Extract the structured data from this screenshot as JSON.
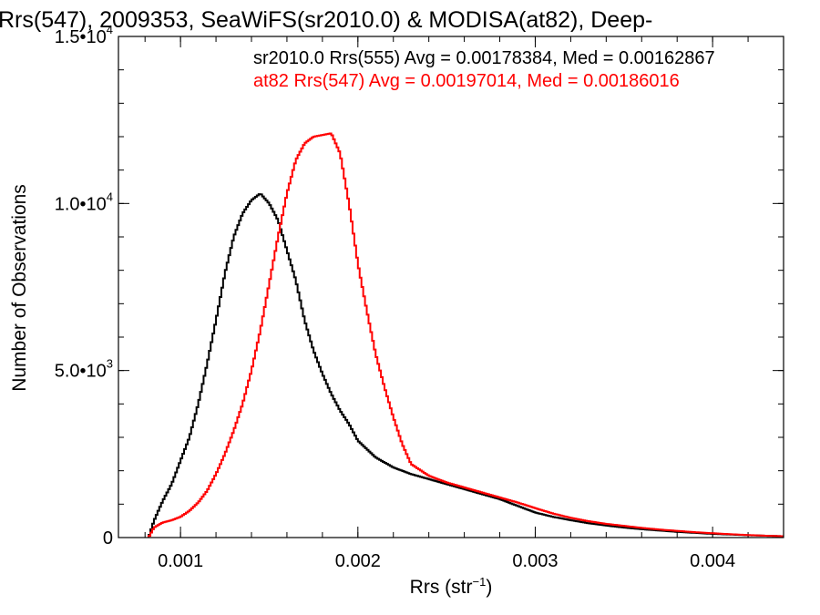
{
  "chart_data": {
    "type": "line",
    "title": "Rrs(547), 2009353, SeaWiFS(sr2010.0) & MODISA(at82), Deep-",
    "xlabel": {
      "base": "Rrs (str",
      "sup": "−1",
      "close": ")"
    },
    "ylabel": "Number of Observations",
    "xlim": [
      0.00065,
      0.0044
    ],
    "ylim": [
      0,
      15000
    ],
    "grid": false,
    "x_ticks": [
      {
        "value": 0.001,
        "label": "0.001"
      },
      {
        "value": 0.002,
        "label": "0.002"
      },
      {
        "value": 0.003,
        "label": "0.003"
      },
      {
        "value": 0.004,
        "label": "0.004"
      }
    ],
    "x_minor_step": 0.0002,
    "y_ticks": [
      {
        "value": 0,
        "mant": "0",
        "exp": ""
      },
      {
        "value": 5000,
        "mant": "5.0•10",
        "exp": "3"
      },
      {
        "value": 10000,
        "mant": "1.0•10",
        "exp": "4"
      },
      {
        "value": 15000,
        "mant": "1.5•10",
        "exp": "4"
      }
    ],
    "y_minor_step": 1000,
    "annotations": [
      {
        "text": "sr2010.0 Rrs(555) Avg = 0.00178384, Med = 0.00162867",
        "color": "#000000"
      },
      {
        "text": "at82 Rrs(547) Avg = 0.00197014, Med = 0.00186016",
        "color": "#ff0000"
      }
    ],
    "series": [
      {
        "color": "#000000",
        "x": [
          0.00082,
          0.00085,
          0.0009,
          0.00095,
          0.001,
          0.00105,
          0.0011,
          0.00115,
          0.0012,
          0.00125,
          0.0013,
          0.00135,
          0.0014,
          0.00145,
          0.0015,
          0.00155,
          0.0016,
          0.00165,
          0.0017,
          0.00175,
          0.0018,
          0.00185,
          0.0019,
          0.00195,
          0.002,
          0.0021,
          0.0022,
          0.0023,
          0.0024,
          0.0025,
          0.0026,
          0.0027,
          0.0028,
          0.0029,
          0.003,
          0.0031,
          0.0032,
          0.0033,
          0.0034,
          0.0035,
          0.0036,
          0.0037,
          0.0038,
          0.0039,
          0.004,
          0.0041,
          0.0042,
          0.0043,
          0.0044
        ],
        "y": [
          0,
          500,
          1100,
          1600,
          2300,
          3000,
          4000,
          5200,
          6500,
          7900,
          9000,
          9700,
          10100,
          10300,
          10000,
          9500,
          8600,
          7700,
          6500,
          5600,
          4900,
          4300,
          3800,
          3400,
          2900,
          2400,
          2100,
          1900,
          1750,
          1600,
          1450,
          1300,
          1150,
          950,
          750,
          620,
          520,
          430,
          360,
          300,
          250,
          210,
          170,
          140,
          110,
          90,
          70,
          55,
          40
        ]
      },
      {
        "color": "#ff0000",
        "x": [
          0.00082,
          0.00085,
          0.0009,
          0.00095,
          0.001,
          0.00105,
          0.0011,
          0.00115,
          0.0012,
          0.00125,
          0.0013,
          0.00135,
          0.0014,
          0.00145,
          0.0015,
          0.00155,
          0.0016,
          0.00165,
          0.0017,
          0.00175,
          0.0018,
          0.00185,
          0.0019,
          0.00195,
          0.002,
          0.00205,
          0.0021,
          0.00215,
          0.0022,
          0.00225,
          0.0023,
          0.0024,
          0.0025,
          0.0026,
          0.0027,
          0.0028,
          0.0029,
          0.003,
          0.0031,
          0.0032,
          0.0033,
          0.0034,
          0.0035,
          0.0036,
          0.0037,
          0.0038,
          0.0039,
          0.004,
          0.0041,
          0.0042,
          0.0043,
          0.0044
        ],
        "y": [
          0,
          300,
          450,
          520,
          620,
          800,
          1050,
          1400,
          1900,
          2500,
          3200,
          4000,
          5000,
          6200,
          7600,
          9000,
          10300,
          11300,
          11800,
          12000,
          12050,
          12100,
          11500,
          10000,
          8200,
          6800,
          5500,
          4500,
          3600,
          2800,
          2200,
          1850,
          1650,
          1500,
          1350,
          1200,
          1050,
          880,
          720,
          590,
          490,
          410,
          350,
          290,
          240,
          200,
          160,
          130,
          100,
          75,
          55,
          40
        ]
      }
    ]
  }
}
